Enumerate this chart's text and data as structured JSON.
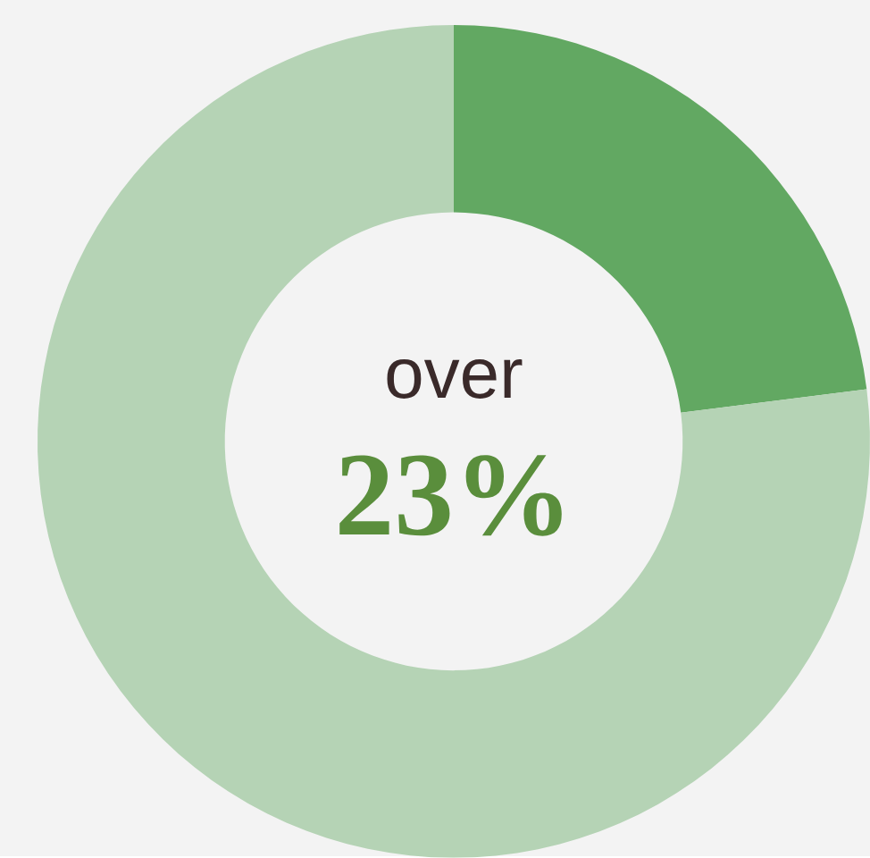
{
  "chart_data": {
    "type": "donut",
    "categories": [
      null,
      null
    ],
    "values": [
      23,
      77
    ],
    "colors": [
      "#62a862",
      "#b5d3b5"
    ],
    "annotations": [
      "over",
      "23%"
    ]
  }
}
